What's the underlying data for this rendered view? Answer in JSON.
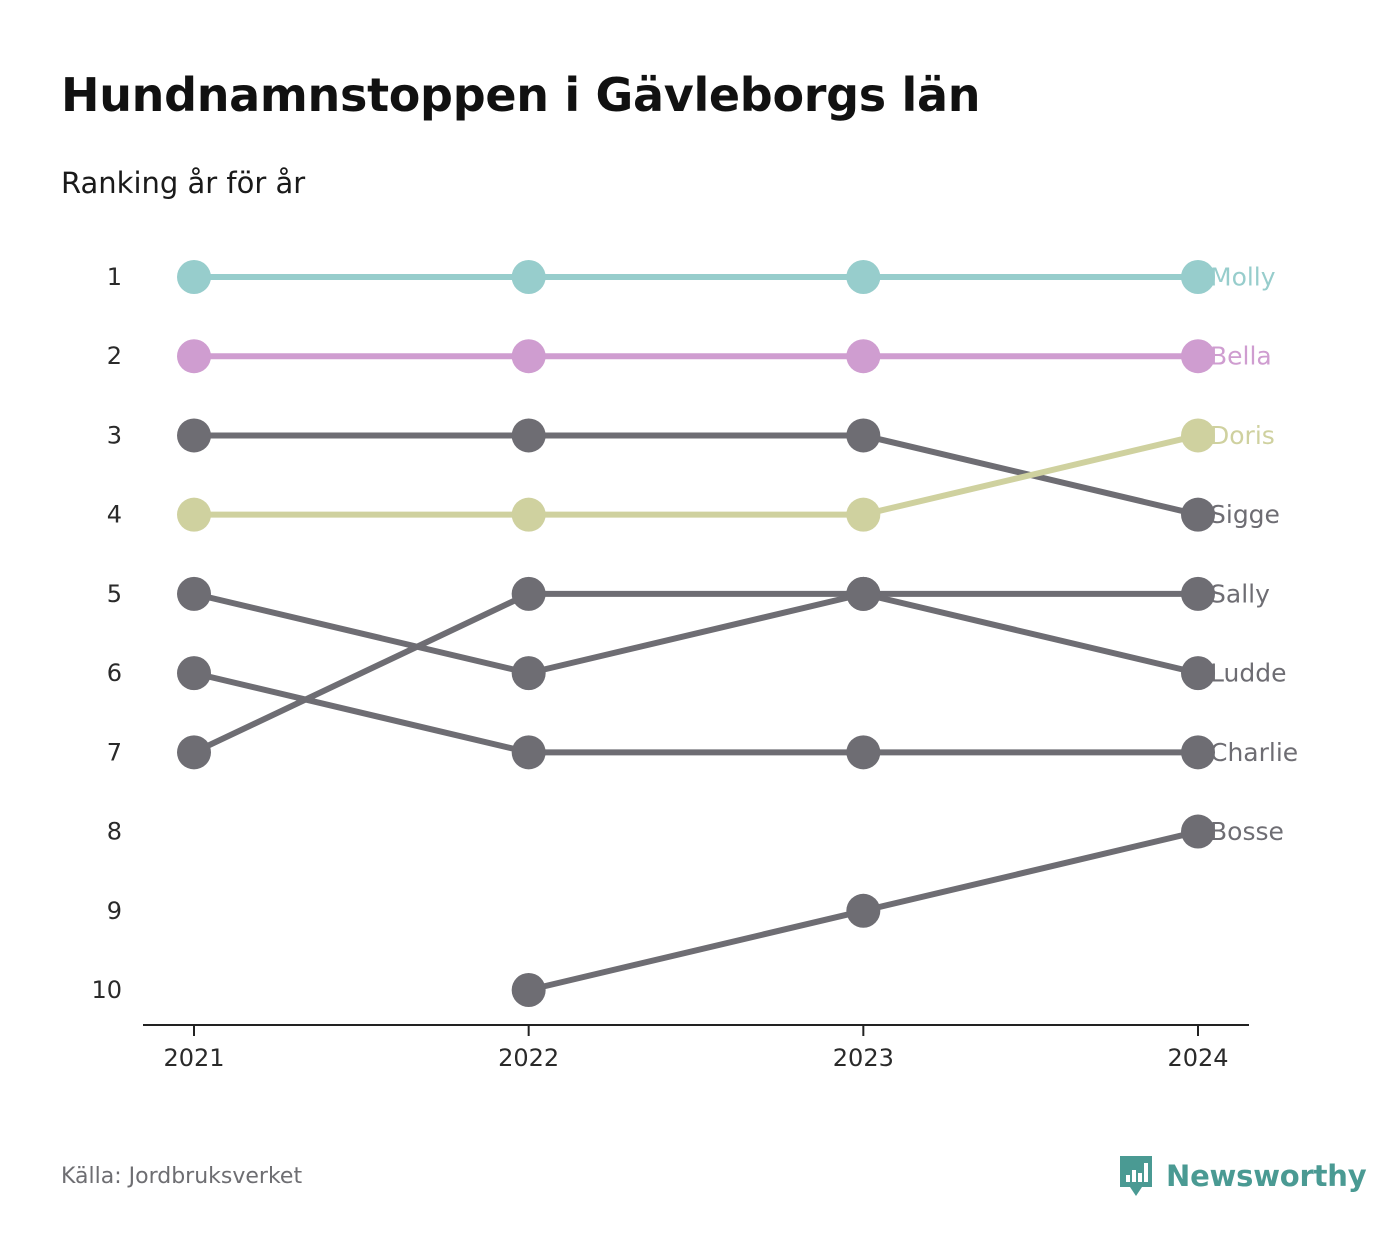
{
  "header": {
    "title": "Hundnamnstoppen i Gävleborgs län",
    "subtitle": "Ranking år för år"
  },
  "footer": {
    "source": "Källa: Jordbruksverket",
    "brand": "Newsworthy",
    "brand_icon": "newsworthy-logo-icon",
    "brand_color": "#4a9a93"
  },
  "chart_data": {
    "type": "line",
    "x": [
      "2021",
      "2022",
      "2023",
      "2024"
    ],
    "yticks": [
      "1",
      "2",
      "3",
      "4",
      "5",
      "6",
      "7",
      "8",
      "9",
      "10"
    ],
    "ylim": [
      1,
      10
    ],
    "y_reversed": true,
    "grid": false,
    "legend": "end-labels",
    "series": [
      {
        "name": "Molly",
        "color": "#97cdcc",
        "values": [
          1,
          1,
          1,
          1
        ]
      },
      {
        "name": "Bella",
        "color": "#cf9dd0",
        "values": [
          2,
          2,
          2,
          2
        ]
      },
      {
        "name": "Doris",
        "color": "#cfd19f",
        "values": [
          4,
          4,
          4,
          3
        ]
      },
      {
        "name": "Sigge",
        "color": "#6e6d73",
        "values": [
          3,
          3,
          3,
          4
        ]
      },
      {
        "name": "Sally",
        "color": "#6e6d73",
        "values": [
          7,
          5,
          5,
          5
        ]
      },
      {
        "name": "Ludde",
        "color": "#6e6d73",
        "values": [
          5,
          6,
          5,
          6
        ]
      },
      {
        "name": "Charlie",
        "color": "#6e6d73",
        "values": [
          6,
          7,
          7,
          7
        ]
      },
      {
        "name": "Bosse",
        "color": "#6e6d73",
        "values": [
          null,
          10,
          9,
          8
        ]
      }
    ]
  }
}
